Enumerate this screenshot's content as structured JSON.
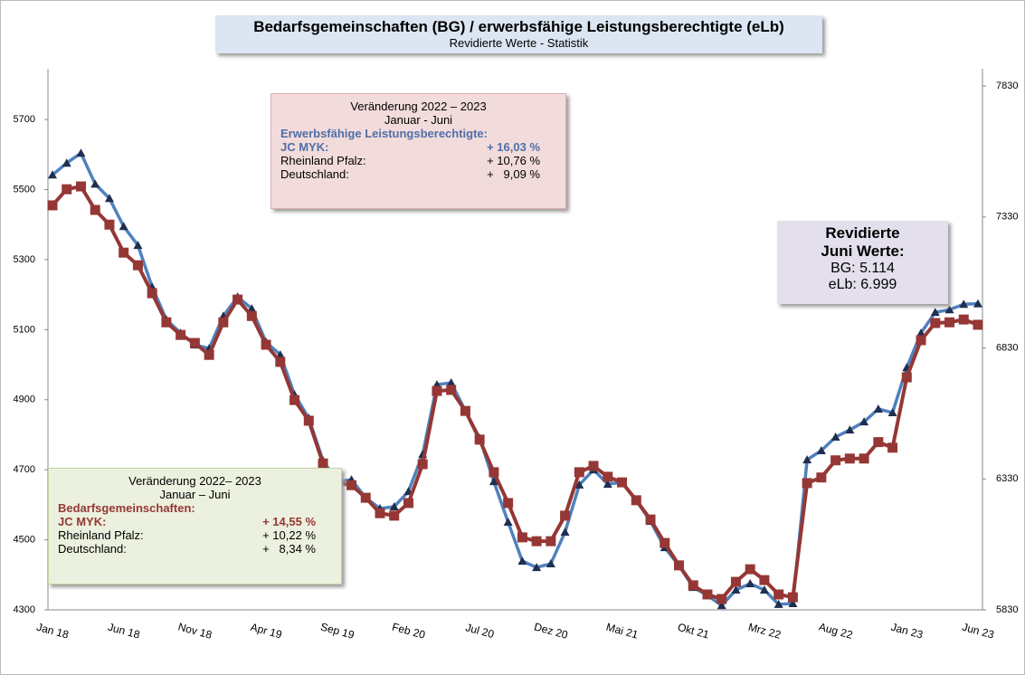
{
  "chart_data": {
    "type": "line",
    "title": "Bedarfsgemeinschaften (BG) / erwerbsfähige Leistungsberechtigte (eLb)",
    "subtitle": "Revidierte Werte - Statistik",
    "categories": [
      "Jan 18",
      null,
      null,
      null,
      null,
      "Jun 18",
      null,
      null,
      null,
      null,
      "Nov 18",
      null,
      null,
      null,
      null,
      "Apr 19",
      null,
      null,
      null,
      null,
      "Sep 19",
      null,
      null,
      null,
      null,
      "Feb 20",
      null,
      null,
      null,
      null,
      "Jul 20",
      null,
      null,
      null,
      null,
      "Dez 20",
      null,
      null,
      null,
      null,
      "Mai 21",
      null,
      null,
      null,
      null,
      "Okt 21",
      null,
      null,
      null,
      null,
      "Mrz 22",
      null,
      null,
      null,
      null,
      "Aug 22",
      null,
      null,
      null,
      null,
      "Jan 23",
      null,
      null,
      null,
      null,
      "Jun 23"
    ],
    "series": [
      {
        "name": "eLb",
        "axis": "y2",
        "color": "#4f81bd",
        "marker_color": "#1f2f4f",
        "values": [
          7491,
          7536,
          7574,
          7456,
          7401,
          7294,
          7222,
          7063,
          6938,
          6887,
          6842,
          6828,
          6952,
          7025,
          6980,
          6852,
          6804,
          6652,
          6562,
          6400,
          6320,
          6327,
          6258,
          6217,
          6224,
          6282,
          6424,
          6690,
          6697,
          6590,
          6486,
          6320,
          6165,
          6016,
          5992,
          6006,
          6127,
          6307,
          6365,
          6310,
          6317,
          6248,
          6168,
          6068,
          5999,
          5916,
          5885,
          5847,
          5906,
          5930,
          5906,
          5851,
          5854,
          6403,
          6438,
          6490,
          6517,
          6548,
          6597,
          6583,
          6755,
          6887,
          6966,
          6976,
          6997,
          6999
        ]
      },
      {
        "name": "BG",
        "color": "#953735",
        "values": [
          5455,
          5501,
          5509,
          5442,
          5400,
          5320,
          5284,
          5204,
          5121,
          5085,
          5062,
          5028,
          5121,
          5186,
          5139,
          5057,
          5008,
          4899,
          4840,
          4718,
          4662,
          4656,
          4620,
          4576,
          4569,
          4605,
          4716,
          4925,
          4928,
          4868,
          4786,
          4693,
          4605,
          4507,
          4496,
          4496,
          4569,
          4693,
          4711,
          4680,
          4664,
          4613,
          4558,
          4491,
          4427,
          4370,
          4344,
          4331,
          4380,
          4416,
          4385,
          4344,
          4336,
          4662,
          4678,
          4727,
          4732,
          4732,
          4779,
          4763,
          4964,
          5070,
          5119,
          5121,
          5129,
          5114
        ]
      }
    ],
    "ylim": [
      4300,
      5845
    ],
    "yticks": [
      4300,
      4500,
      4700,
      4900,
      5100,
      5300,
      5500,
      5700
    ],
    "y2lim": [
      5830,
      7896
    ],
    "y2ticks": [
      5830,
      6330,
      6830,
      7330,
      7830
    ],
    "annotations": [
      {
        "lines": [
          "Veränderung 2022 – 2023",
          "Januar - Juni",
          "Erwerbsfähige Leistungsberechtigte:"
        ],
        "rows": [
          [
            "JC MYK:",
            "+ 16,03 %"
          ],
          [
            "Rheinland Pfalz:",
            "+ 10,76 %"
          ],
          [
            "Deutschland:",
            "+   9,09 %"
          ]
        ]
      },
      {
        "lines": [
          "Veränderung 2022– 2023",
          "Januar – Juni",
          "Bedarfsgemeinschaften:"
        ],
        "rows": [
          [
            "JC MYK:",
            "+ 14,55 %"
          ],
          [
            "Rheinland Pfalz:",
            "+ 10,22 %"
          ],
          [
            "Deutschland:",
            "+   8,34 %"
          ]
        ]
      },
      {
        "lines": [
          "Revidierte",
          "Juni Werte:",
          "BG: 5.114",
          "eLb: 6.999"
        ]
      }
    ]
  }
}
